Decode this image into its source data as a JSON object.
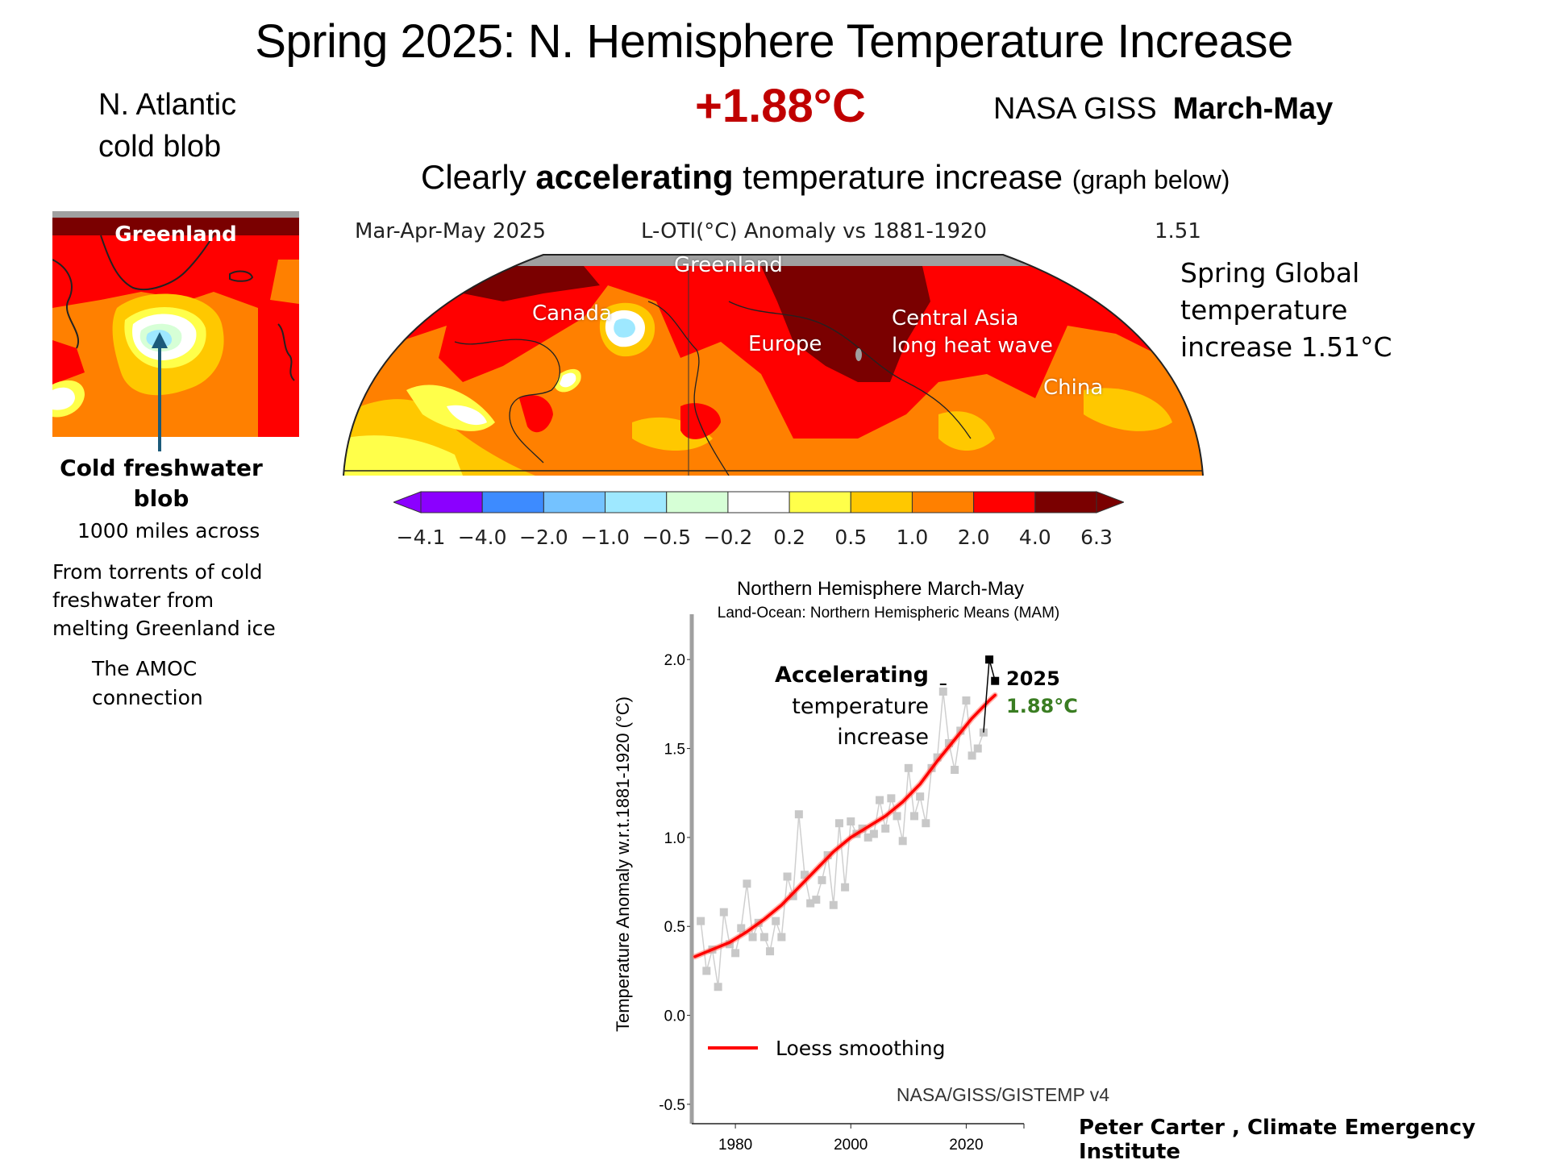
{
  "slide": {
    "title": "Spring 2025: N. Hemisphere Temperature Increase",
    "headline_value": "+1.88°C",
    "source_label": "NASA GISS",
    "period_label": "March-May",
    "subtitle_prefix": "Clearly ",
    "subtitle_bold": "accelerating",
    "subtitle_suffix": " temperature increase ",
    "subtitle_note": "(graph below)",
    "credit": "Peter Carter , Climate Emergency Institute"
  },
  "left_panel": {
    "heading_line1": "N. Atlantic",
    "heading_line2": "cold blob",
    "inset_label": "Greenland",
    "blob_title_line1": "Cold freshwater",
    "blob_title_line2": "blob",
    "blob_size": "1000 miles across",
    "desc_line1": "From torrents of cold",
    "desc_line2": "freshwater from",
    "desc_line3": "melting Greenland ice",
    "amoc_line1": "The AMOC",
    "amoc_line2": "connection",
    "arrow_color": "#1b5a7a"
  },
  "map": {
    "header_period": "Mar-Apr-May 2025",
    "header_title": "L-OTI(°C) Anomaly vs 1881-1920",
    "header_value": "1.51",
    "labels": {
      "greenland": "Greenland",
      "canada": "Canada",
      "europe": "Europe",
      "central_asia_1": "Central Asia",
      "central_asia_2": "long heat wave",
      "china": "China"
    },
    "side_note_line1": "Spring Global",
    "side_note_line2": "temperature",
    "side_note_line3": "increase 1.51°C",
    "colorbar": {
      "ticks": [
        "−4.1",
        "−4.0",
        "−2.0",
        "−1.0",
        "−0.5",
        "−0.2",
        "0.2",
        "0.5",
        "1.0",
        "2.0",
        "4.0",
        "6.3"
      ],
      "colors": [
        "#8b00ff",
        "#3d8bff",
        "#74c2ff",
        "#9ee8ff",
        "#d6ffd6",
        "#ffffff",
        "#ffff4a",
        "#ffc800",
        "#ff8000",
        "#ff0000",
        "#7a0000"
      ]
    }
  },
  "chart_data": {
    "type": "line",
    "title": "Northern  Hemisphere March-May",
    "subtitle": "Land-Ocean: Northern Hemispheric Means (MAM)",
    "xlabel": "",
    "ylabel": "Temperature Anomaly w.r.t.1881-1920 (°C)",
    "xlim": [
      1973,
      2030
    ],
    "ylim": [
      -0.6,
      2.3
    ],
    "x_ticks": [
      1980,
      2000,
      2020
    ],
    "y_ticks": [
      -0.5,
      0.0,
      0.5,
      1.0,
      1.5,
      2.0
    ],
    "y_tick_labels": [
      "-0.5",
      "0.0",
      "0.5",
      "1.0",
      "1.5",
      "2.0"
    ],
    "grid": false,
    "legend": {
      "position": "bottom-left",
      "entries": [
        {
          "name": "Loess smoothing",
          "color": "#ff0000"
        }
      ]
    },
    "source_note": "NASA/GISS/GISTEMP v4",
    "annotations": {
      "accel_line1": "Accelerating",
      "accel_line2": "temperature",
      "accel_line3": "increase",
      "year_label": "2025",
      "value_label": "1.88°C",
      "value_color": "#3a7d22"
    },
    "series": [
      {
        "name": "Annual MAM anomaly",
        "color": "#c8c8c8",
        "x": [
          1974,
          1975,
          1976,
          1977,
          1978,
          1979,
          1980,
          1981,
          1982,
          1983,
          1984,
          1985,
          1986,
          1987,
          1988,
          1989,
          1990,
          1991,
          1992,
          1993,
          1994,
          1995,
          1996,
          1997,
          1998,
          1999,
          2000,
          2001,
          2002,
          2003,
          2004,
          2005,
          2006,
          2007,
          2008,
          2009,
          2010,
          2011,
          2012,
          2013,
          2014,
          2015,
          2016,
          2017,
          2018,
          2019,
          2020,
          2021,
          2022,
          2023
        ],
        "values": [
          0.53,
          0.25,
          0.37,
          0.16,
          0.58,
          0.4,
          0.35,
          0.49,
          0.74,
          0.44,
          0.52,
          0.44,
          0.36,
          0.53,
          0.44,
          0.78,
          0.67,
          1.13,
          0.79,
          0.63,
          0.65,
          0.76,
          0.9,
          0.62,
          1.08,
          0.72,
          1.09,
          1.02,
          1.05,
          1.0,
          1.02,
          1.21,
          1.05,
          1.22,
          1.12,
          0.98,
          1.39,
          1.12,
          1.23,
          1.08,
          1.39,
          1.45,
          1.82,
          1.53,
          1.38,
          1.6,
          1.77,
          1.46,
          1.5,
          1.59
        ]
      },
      {
        "name": "Recent years",
        "color": "#000000",
        "x": [
          2024,
          2025
        ],
        "values": [
          2.0,
          1.88
        ]
      },
      {
        "name": "Loess smoothing",
        "color": "#ff0000",
        "x": [
          1973,
          1976,
          1979,
          1982,
          1985,
          1988,
          1991,
          1994,
          1997,
          2000,
          2003,
          2006,
          2009,
          2012,
          2015,
          2018,
          2021,
          2024,
          2025
        ],
        "values": [
          0.33,
          0.37,
          0.41,
          0.47,
          0.54,
          0.62,
          0.72,
          0.82,
          0.92,
          1.0,
          1.06,
          1.12,
          1.2,
          1.3,
          1.43,
          1.55,
          1.67,
          1.77,
          1.8
        ]
      }
    ]
  }
}
